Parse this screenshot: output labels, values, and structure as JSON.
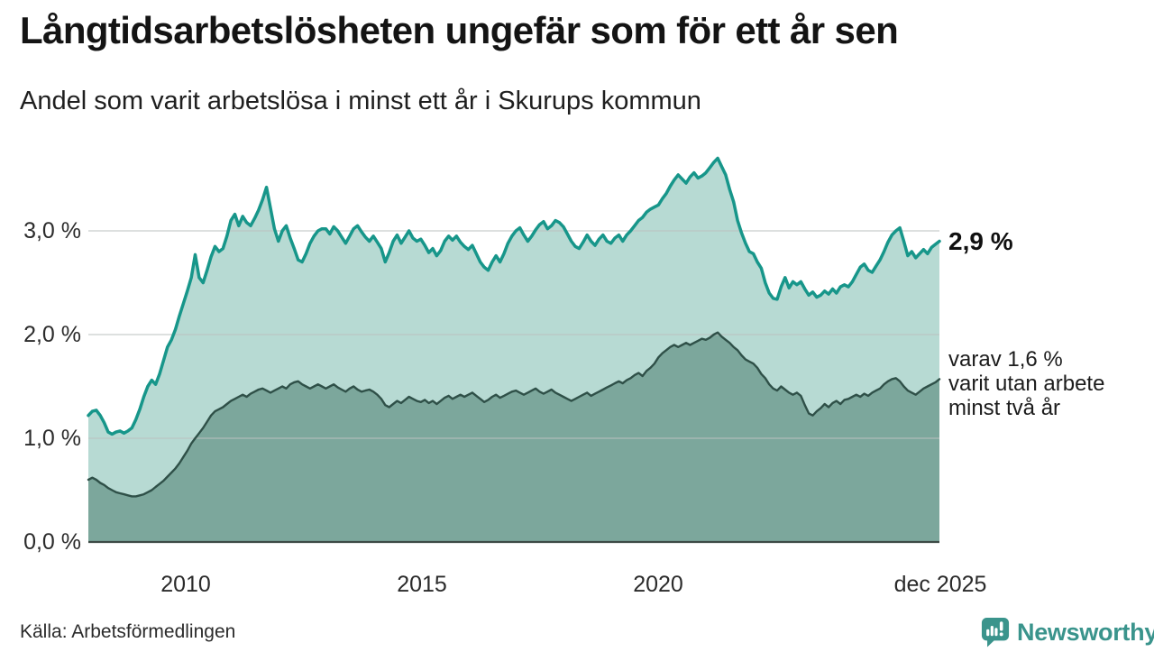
{
  "title": "Långtidsarbetslösheten ungefär som för ett år sen",
  "subtitle": "Andel som varit arbetslösa i minst ett år i Skurups kommun",
  "source": "Källa: Arbetsförmedlingen",
  "brand": {
    "name": "Newsworthy",
    "color": "#3a948c",
    "icon": "bar-chart-speech-bubble-icon"
  },
  "annotations": {
    "latest_total": "2,9 %",
    "secondary_lines": [
      "varav 1,6 %",
      "varit utan arbete",
      "minst två år"
    ]
  },
  "axis": {
    "y_ticks": [
      "3,0 %",
      "2,0 %",
      "1,0 %",
      "0,0 %"
    ],
    "x_ticks": [
      "2010",
      "2015",
      "2020",
      "dec 2025"
    ]
  },
  "chart_data": {
    "type": "area",
    "title": "Långtidsarbetslösheten ungefär som för ett år sen",
    "subtitle": "Andel som varit arbetslösa i minst ett år i Skurups kommun",
    "unit": "%",
    "x_start": "2008-01",
    "x_end": "2025-12",
    "x_resolution": "monthly",
    "x_tick_labels": [
      "2010",
      "2015",
      "2020",
      "dec 2025"
    ],
    "ylim": [
      0,
      3.8
    ],
    "y_tick_values": [
      0.0,
      1.0,
      2.0,
      3.0
    ],
    "grid": true,
    "legend_position": "right-annotations",
    "grid_color": "#bcc2c0",
    "baseline_color": "#3c4a45",
    "series": [
      {
        "name": "Andel arbetslösa minst ett år",
        "stroke": "#17968a",
        "fill": "#b7dad3",
        "latest_value": 2.9,
        "latest_label": "2,9 %",
        "values": [
          1.22,
          1.26,
          1.27,
          1.22,
          1.15,
          1.06,
          1.04,
          1.06,
          1.07,
          1.05,
          1.07,
          1.1,
          1.18,
          1.28,
          1.4,
          1.5,
          1.56,
          1.52,
          1.62,
          1.75,
          1.88,
          1.95,
          2.05,
          2.18,
          2.3,
          2.42,
          2.55,
          2.77,
          2.55,
          2.5,
          2.62,
          2.75,
          2.85,
          2.8,
          2.83,
          2.95,
          3.1,
          3.16,
          3.05,
          3.14,
          3.08,
          3.05,
          3.12,
          3.2,
          3.3,
          3.42,
          3.22,
          3.02,
          2.9,
          3.0,
          3.05,
          2.93,
          2.83,
          2.72,
          2.7,
          2.78,
          2.88,
          2.95,
          3.0,
          3.02,
          3.02,
          2.97,
          3.04,
          3.0,
          2.94,
          2.88,
          2.95,
          3.02,
          3.05,
          2.99,
          2.94,
          2.9,
          2.95,
          2.89,
          2.83,
          2.7,
          2.79,
          2.9,
          2.96,
          2.88,
          2.94,
          3.0,
          2.93,
          2.9,
          2.92,
          2.86,
          2.79,
          2.83,
          2.76,
          2.81,
          2.9,
          2.95,
          2.91,
          2.95,
          2.89,
          2.85,
          2.82,
          2.86,
          2.78,
          2.7,
          2.65,
          2.62,
          2.7,
          2.76,
          2.7,
          2.78,
          2.88,
          2.95,
          3.0,
          3.03,
          2.96,
          2.9,
          2.95,
          3.01,
          3.06,
          3.09,
          3.02,
          3.05,
          3.1,
          3.08,
          3.04,
          2.97,
          2.9,
          2.85,
          2.83,
          2.89,
          2.96,
          2.9,
          2.86,
          2.92,
          2.96,
          2.9,
          2.88,
          2.93,
          2.96,
          2.9,
          2.96,
          3.0,
          3.05,
          3.1,
          3.13,
          3.18,
          3.21,
          3.23,
          3.25,
          3.31,
          3.36,
          3.43,
          3.49,
          3.54,
          3.5,
          3.46,
          3.52,
          3.56,
          3.51,
          3.53,
          3.56,
          3.61,
          3.66,
          3.7,
          3.62,
          3.54,
          3.4,
          3.28,
          3.1,
          2.98,
          2.88,
          2.8,
          2.78,
          2.7,
          2.64,
          2.5,
          2.4,
          2.35,
          2.34,
          2.46,
          2.55,
          2.45,
          2.51,
          2.48,
          2.51,
          2.44,
          2.38,
          2.41,
          2.36,
          2.38,
          2.42,
          2.39,
          2.44,
          2.4,
          2.46,
          2.48,
          2.46,
          2.51,
          2.58,
          2.65,
          2.68,
          2.62,
          2.6,
          2.66,
          2.72,
          2.8,
          2.89,
          2.96,
          3.0,
          3.03,
          2.9,
          2.76,
          2.8,
          2.74,
          2.78,
          2.82,
          2.78,
          2.84,
          2.87,
          2.9
        ]
      },
      {
        "name": "varav utan arbete minst två år",
        "stroke": "#2f5048",
        "fill": "#7ca79c",
        "latest_value": 1.6,
        "latest_label": "varav 1,6 % varit utan arbete minst två år",
        "values": [
          0.6,
          0.62,
          0.6,
          0.57,
          0.55,
          0.52,
          0.5,
          0.48,
          0.47,
          0.46,
          0.45,
          0.44,
          0.44,
          0.45,
          0.46,
          0.48,
          0.5,
          0.53,
          0.56,
          0.59,
          0.63,
          0.67,
          0.71,
          0.76,
          0.82,
          0.88,
          0.95,
          1.0,
          1.05,
          1.1,
          1.16,
          1.22,
          1.26,
          1.28,
          1.3,
          1.33,
          1.36,
          1.38,
          1.4,
          1.42,
          1.4,
          1.43,
          1.45,
          1.47,
          1.48,
          1.46,
          1.44,
          1.46,
          1.48,
          1.5,
          1.48,
          1.52,
          1.54,
          1.55,
          1.52,
          1.5,
          1.48,
          1.5,
          1.52,
          1.5,
          1.48,
          1.5,
          1.52,
          1.49,
          1.47,
          1.45,
          1.48,
          1.5,
          1.47,
          1.45,
          1.46,
          1.47,
          1.45,
          1.42,
          1.38,
          1.32,
          1.3,
          1.33,
          1.36,
          1.34,
          1.37,
          1.4,
          1.38,
          1.36,
          1.35,
          1.37,
          1.34,
          1.36,
          1.33,
          1.36,
          1.39,
          1.41,
          1.38,
          1.4,
          1.42,
          1.4,
          1.42,
          1.44,
          1.41,
          1.38,
          1.35,
          1.37,
          1.4,
          1.42,
          1.39,
          1.41,
          1.43,
          1.45,
          1.46,
          1.44,
          1.42,
          1.44,
          1.46,
          1.48,
          1.45,
          1.43,
          1.45,
          1.47,
          1.44,
          1.42,
          1.4,
          1.38,
          1.36,
          1.38,
          1.4,
          1.42,
          1.44,
          1.41,
          1.43,
          1.45,
          1.47,
          1.49,
          1.51,
          1.53,
          1.55,
          1.53,
          1.56,
          1.58,
          1.61,
          1.63,
          1.6,
          1.65,
          1.68,
          1.72,
          1.78,
          1.82,
          1.85,
          1.88,
          1.9,
          1.88,
          1.9,
          1.92,
          1.9,
          1.92,
          1.94,
          1.96,
          1.95,
          1.97,
          2.0,
          2.02,
          1.98,
          1.95,
          1.92,
          1.88,
          1.85,
          1.8,
          1.76,
          1.74,
          1.72,
          1.68,
          1.62,
          1.58,
          1.52,
          1.48,
          1.46,
          1.5,
          1.47,
          1.44,
          1.42,
          1.44,
          1.41,
          1.32,
          1.24,
          1.22,
          1.26,
          1.29,
          1.33,
          1.3,
          1.34,
          1.36,
          1.33,
          1.37,
          1.38,
          1.4,
          1.42,
          1.4,
          1.43,
          1.41,
          1.44,
          1.46,
          1.48,
          1.52,
          1.55,
          1.57,
          1.58,
          1.55,
          1.5,
          1.46,
          1.44,
          1.42,
          1.45,
          1.48,
          1.5,
          1.52,
          1.54,
          1.57
        ]
      }
    ]
  }
}
